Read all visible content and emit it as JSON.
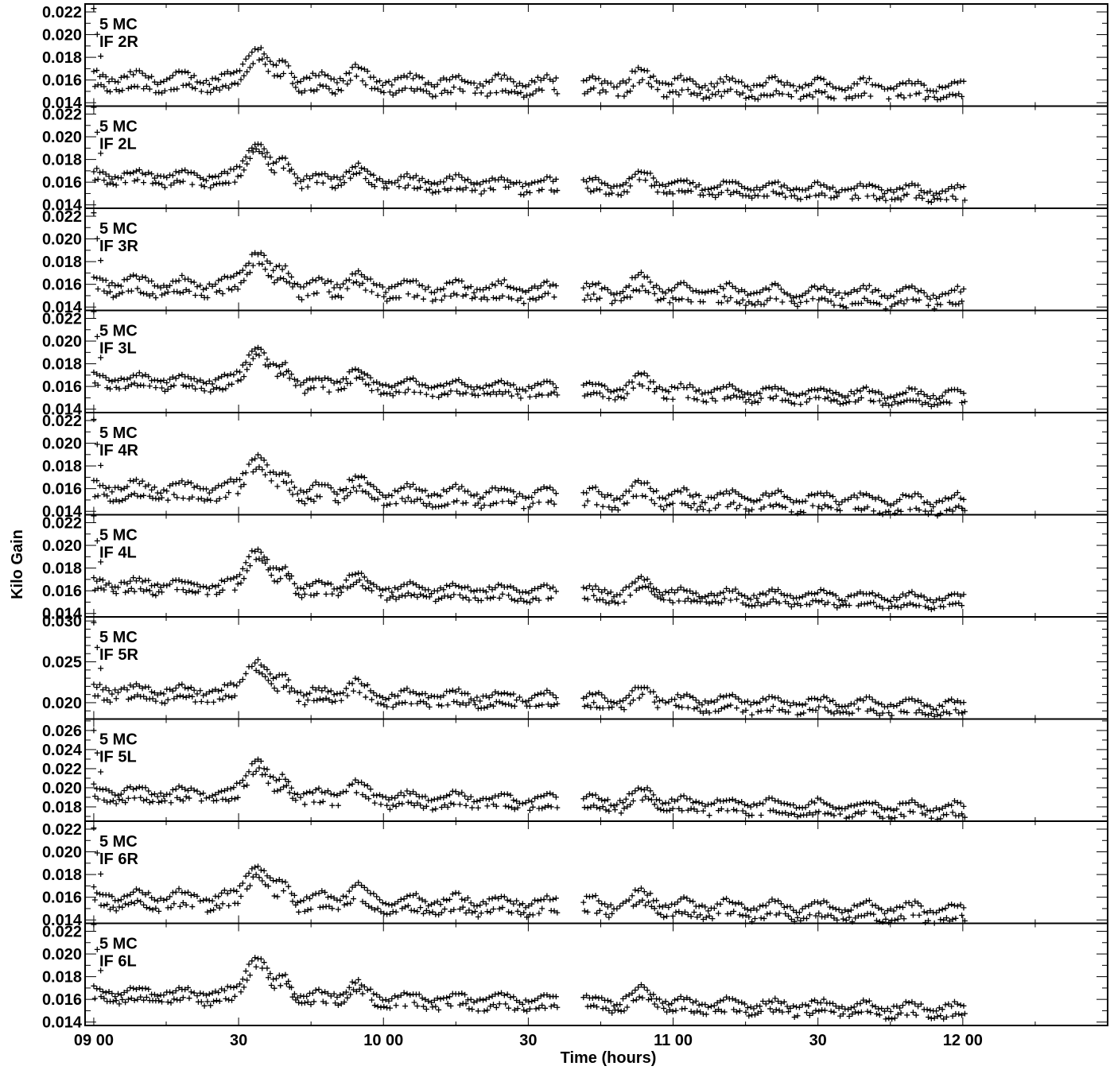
{
  "chart_data": {
    "type": "scatter",
    "marker": "plus",
    "color": "#000000",
    "xlabel": "Time (hours)",
    "ylabel": "Kilo Gain",
    "xlim": [
      8.97,
      12.5
    ],
    "x_ticks": [
      {
        "value": 9.0,
        "label": "09 00"
      },
      {
        "value": 9.5,
        "label": "30"
      },
      {
        "value": 10.0,
        "label": "10 00"
      },
      {
        "value": 10.5,
        "label": "30"
      },
      {
        "value": 11.0,
        "label": "11 00"
      },
      {
        "value": 11.5,
        "label": "30"
      },
      {
        "value": 12.0,
        "label": "12 00"
      }
    ],
    "x_minor_ticks": [
      9.25,
      9.75,
      10.25,
      10.75,
      11.25,
      11.75,
      12.25
    ],
    "panels": [
      {
        "line1": "5 MC",
        "line2": "IF 2R",
        "ylim": [
          0.0137,
          0.0227
        ],
        "y_ticks": [
          0.014,
          0.016,
          0.018,
          0.02,
          0.022
        ],
        "y_tick_labels": [
          "0.014",
          "0.016",
          "0.018",
          "0.020",
          "0.022"
        ],
        "y_minor_ticks": [
          0.015,
          0.017,
          0.019,
          0.021
        ],
        "baseline": 0.0163,
        "level_end": 0.0155,
        "split": 0.001,
        "spike": 0.006,
        "bump": 0.003
      },
      {
        "line1": "5 MC",
        "line2": "IF 2L",
        "ylim": [
          0.0137,
          0.0227
        ],
        "y_ticks": [
          0.014,
          0.016,
          0.018,
          0.02,
          0.022
        ],
        "y_tick_labels": [
          "0.014",
          "0.016",
          "0.018",
          "0.020",
          "0.022"
        ],
        "y_minor_ticks": [
          0.015,
          0.017,
          0.019,
          0.021
        ],
        "baseline": 0.0168,
        "level_end": 0.0153,
        "split": 0.0008,
        "spike": 0.0058,
        "bump": 0.0032
      },
      {
        "line1": "5 MC",
        "line2": "IF 3R",
        "ylim": [
          0.0137,
          0.0227
        ],
        "y_ticks": [
          0.014,
          0.016,
          0.018,
          0.02,
          0.022
        ],
        "y_tick_labels": [
          "0.014",
          "0.016",
          "0.018",
          "0.020",
          "0.022"
        ],
        "y_minor_ticks": [
          0.015,
          0.017,
          0.019,
          0.021
        ],
        "baseline": 0.0163,
        "level_end": 0.0152,
        "split": 0.001,
        "spike": 0.006,
        "bump": 0.003
      },
      {
        "line1": "5 MC",
        "line2": "IF 3L",
        "ylim": [
          0.0137,
          0.0227
        ],
        "y_ticks": [
          0.014,
          0.016,
          0.018,
          0.02,
          0.022
        ],
        "y_tick_labels": [
          "0.014",
          "0.016",
          "0.018",
          "0.020",
          "0.022"
        ],
        "y_minor_ticks": [
          0.015,
          0.017,
          0.019,
          0.021
        ],
        "baseline": 0.0168,
        "level_end": 0.0153,
        "split": 0.0008,
        "spike": 0.0058,
        "bump": 0.0032
      },
      {
        "line1": "5 MC",
        "line2": "IF 4R",
        "ylim": [
          0.0137,
          0.0227
        ],
        "y_ticks": [
          0.014,
          0.016,
          0.018,
          0.02,
          0.022
        ],
        "y_tick_labels": [
          "0.014",
          "0.016",
          "0.018",
          "0.020",
          "0.022"
        ],
        "y_minor_ticks": [
          0.015,
          0.017,
          0.019,
          0.021
        ],
        "baseline": 0.0163,
        "level_end": 0.015,
        "split": 0.001,
        "spike": 0.0058,
        "bump": 0.003
      },
      {
        "line1": "5 MC",
        "line2": "IF 4L",
        "ylim": [
          0.0137,
          0.0227
        ],
        "y_ticks": [
          0.014,
          0.016,
          0.018,
          0.02,
          0.022
        ],
        "y_tick_labels": [
          "0.014",
          "0.016",
          "0.018",
          "0.020",
          "0.022"
        ],
        "y_minor_ticks": [
          0.015,
          0.017,
          0.019,
          0.021
        ],
        "baseline": 0.0168,
        "level_end": 0.0154,
        "split": 0.0008,
        "spike": 0.0058,
        "bump": 0.0034
      },
      {
        "line1": "5 MC",
        "line2": "IF 5R",
        "ylim": [
          0.018,
          0.0305
        ],
        "y_ticks": [
          0.02,
          0.025,
          0.03
        ],
        "y_tick_labels": [
          "0.020",
          "0.025",
          "0.030"
        ],
        "y_minor_ticks": [
          0.019,
          0.021,
          0.022,
          0.023,
          0.024,
          0.026,
          0.027,
          0.028,
          0.029
        ],
        "baseline": 0.0218,
        "level_end": 0.0198,
        "split": 0.0012,
        "spike": 0.008,
        "bump": 0.004
      },
      {
        "line1": "5 MC",
        "line2": "IF 5L",
        "ylim": [
          0.0165,
          0.0272
        ],
        "y_ticks": [
          0.018,
          0.02,
          0.022,
          0.024,
          0.026
        ],
        "y_tick_labels": [
          "0.018",
          "0.020",
          "0.022",
          "0.024",
          "0.026"
        ],
        "y_minor_ticks": [
          0.017,
          0.019,
          0.021,
          0.023,
          0.025,
          0.027
        ],
        "baseline": 0.0198,
        "level_end": 0.018,
        "split": 0.001,
        "spike": 0.0062,
        "bump": 0.0036
      },
      {
        "line1": "5 MC",
        "line2": "IF 6R",
        "ylim": [
          0.0137,
          0.0227
        ],
        "y_ticks": [
          0.014,
          0.016,
          0.018,
          0.02,
          0.022
        ],
        "y_tick_labels": [
          "0.014",
          "0.016",
          "0.018",
          "0.020",
          "0.022"
        ],
        "y_minor_ticks": [
          0.015,
          0.017,
          0.019,
          0.021
        ],
        "baseline": 0.0163,
        "level_end": 0.015,
        "split": 0.001,
        "spike": 0.0058,
        "bump": 0.003
      },
      {
        "line1": "5 MC",
        "line2": "IF 6L",
        "ylim": [
          0.0137,
          0.0227
        ],
        "y_ticks": [
          0.014,
          0.016,
          0.018,
          0.02,
          0.022
        ],
        "y_tick_labels": [
          "0.014",
          "0.016",
          "0.018",
          "0.020",
          "0.022"
        ],
        "y_minor_ticks": [
          0.015,
          0.017,
          0.019,
          0.021
        ],
        "baseline": 0.0168,
        "level_end": 0.0153,
        "split": 0.0008,
        "spike": 0.0058,
        "bump": 0.0034
      }
    ],
    "observation_gap": [
      10.6,
      10.69
    ],
    "grid": false,
    "legend": "none"
  }
}
